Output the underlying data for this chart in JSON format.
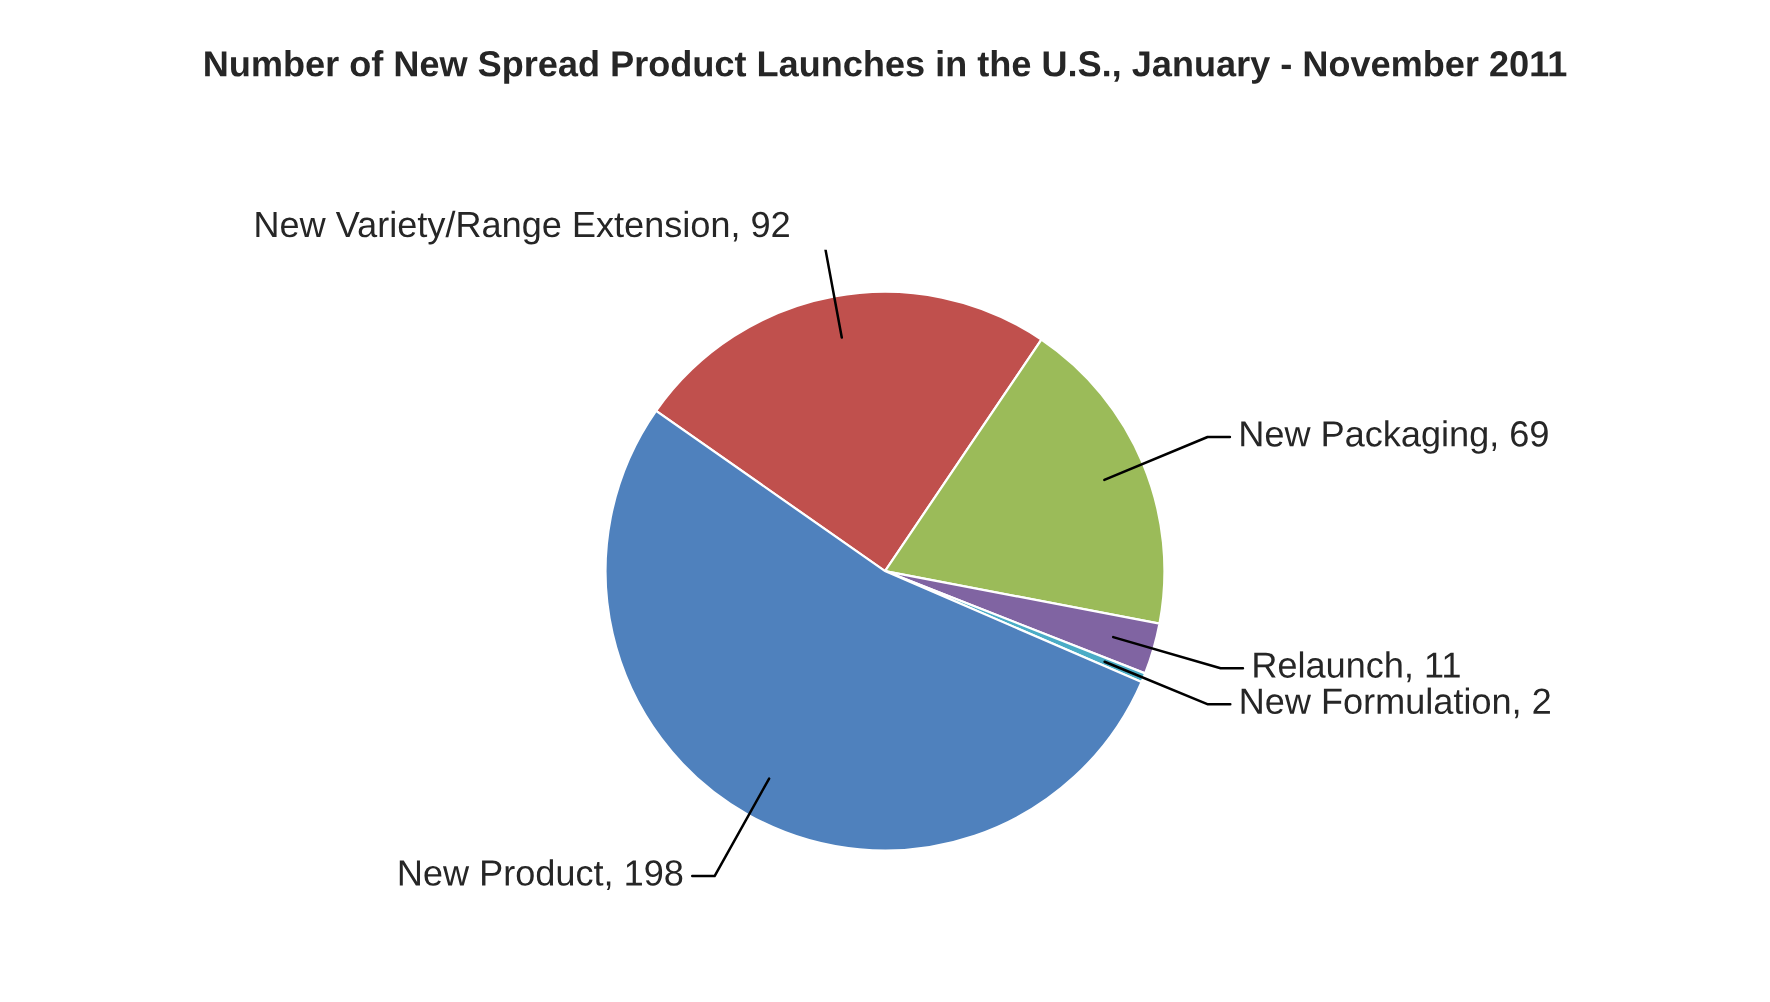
{
  "chart_data": {
    "type": "pie",
    "title": "Number of New Spread Product Launches in the U.S., January - November 2011",
    "categories": [
      "New Variety/Range Extension",
      "New Packaging",
      "Relaunch",
      "New Formulation",
      "New Product"
    ],
    "values": [
      92,
      69,
      11,
      2,
      198
    ],
    "colors": [
      "#c0504d",
      "#9bbb59",
      "#8064a2",
      "#4bacc6",
      "#4f81bd"
    ],
    "value_labels": [
      ", 92",
      ", 69",
      ", 11",
      ", 2",
      ", 198"
    ],
    "legend": false
  }
}
